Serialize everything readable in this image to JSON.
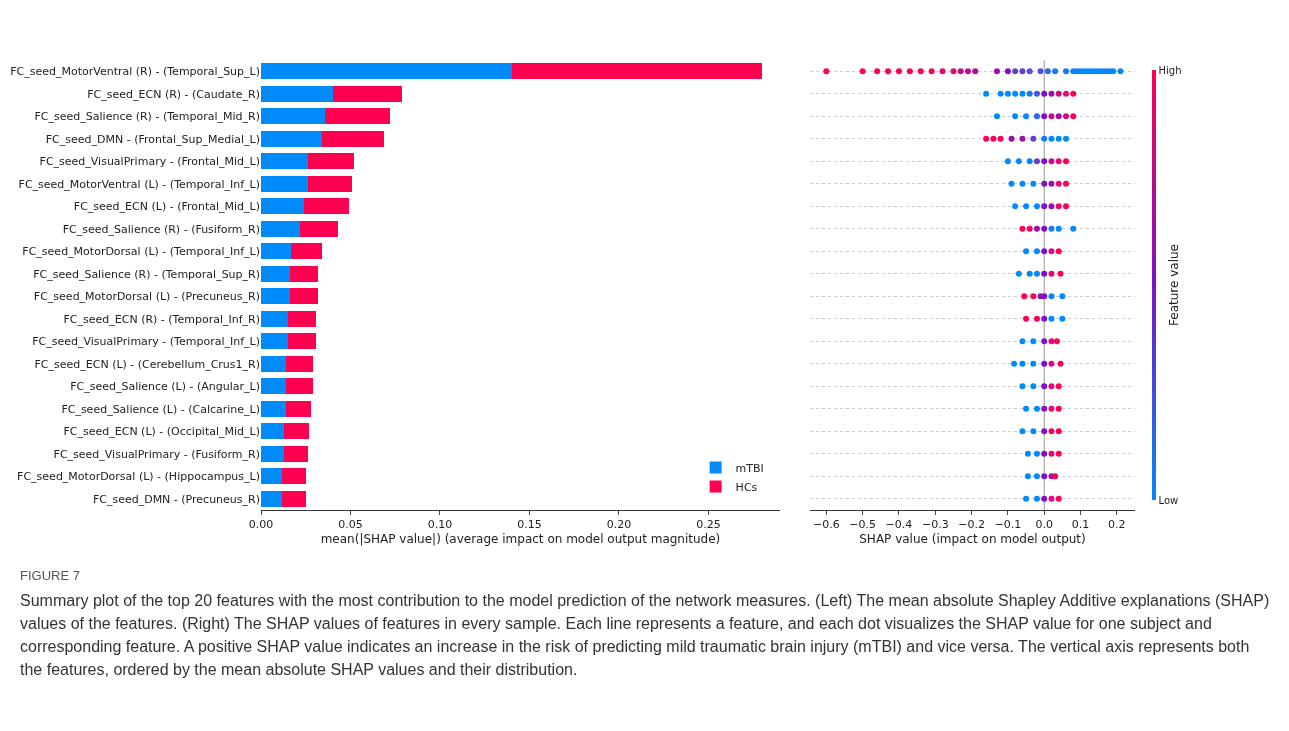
{
  "chart_data": [
    {
      "type": "bar",
      "orientation": "horizontal",
      "stacked": true,
      "legend": "bottom right",
      "xlabel": "mean(|SHAP value|) (average impact on model output magnitude)",
      "categories": [
        "FC_seed_MotorVentral (R) - (Temporal_Sup_L)",
        "FC_seed_ECN (R) - (Caudate_R)",
        "FC_seed_Salience (R) - (Temporal_Mid_R)",
        "FC_seed_DMN - (Frontal_Sup_Medial_L)",
        "FC_seed_VisualPrimary - (Frontal_Mid_L)",
        "FC_seed_MotorVentral (L) - (Temporal_Inf_L)",
        "FC_seed_ECN (L) - (Frontal_Mid_L)",
        "FC_seed_Salience (R) - (Fusiform_R)",
        "FC_seed_MotorDorsal (L) - (Temporal_Inf_L)",
        "FC_seed_Salience (R) - (Temporal_Sup_R)",
        "FC_seed_MotorDorsal (L) - (Precuneus_R)",
        "FC_seed_ECN (R) - (Temporal_Inf_R)",
        "FC_seed_VisualPrimary - (Temporal_Inf_L)",
        "FC_seed_ECN (L) - (Cerebellum_Crus1_R)",
        "FC_seed_Salience (L) - (Angular_L)",
        "FC_seed_Salience (L) - (Calcarine_L)",
        "FC_seed_ECN (L) - (Occipital_Mid_L)",
        "FC_seed_VisualPrimary - (Fusiform_R)",
        "FC_seed_MotorDorsal (L) - (Hippocampus_L)",
        "FC_seed_DMN - (Precuneus_R)"
      ],
      "series": [
        {
          "name": "mTBI",
          "color": "#008bfb",
          "values": [
            0.14,
            0.04,
            0.036,
            0.034,
            0.026,
            0.026,
            0.024,
            0.022,
            0.017,
            0.016,
            0.016,
            0.015,
            0.015,
            0.014,
            0.014,
            0.014,
            0.013,
            0.013,
            0.012,
            0.012
          ]
        },
        {
          "name": "HCs",
          "color": "#ff0051",
          "values": [
            0.14,
            0.039,
            0.036,
            0.035,
            0.026,
            0.025,
            0.025,
            0.021,
            0.017,
            0.016,
            0.016,
            0.016,
            0.016,
            0.015,
            0.015,
            0.014,
            0.014,
            0.013,
            0.013,
            0.013
          ]
        }
      ],
      "xlim": [
        0,
        0.29
      ],
      "xticks": [
        {
          "value": 0,
          "label": "0.00"
        },
        {
          "value": 0.05,
          "label": "0.05"
        },
        {
          "value": 0.1,
          "label": "0.10"
        },
        {
          "value": 0.15,
          "label": "0.15"
        },
        {
          "value": 0.2,
          "label": "0.20"
        },
        {
          "value": 0.25,
          "label": "0.25"
        }
      ],
      "annotations": [
        "FIGURE 7",
        "Summary plot of the top 20 features with the most contribution to the model prediction of the network measures. (Left) The mean absolute Shapley Additive explanations (SHAP) values of the features. (Right) The SHAP values of features in every sample. Each line represents a feature, and each dot visualizes the SHAP value for one subject and corresponding feature. A positive SHAP value indicates an increase in the risk of predicting mild traumatic brain injury (mTBI) and vice versa. The vertical axis represents both the features, ordered by the mean absolute SHAP values and their distribution."
      ]
    },
    {
      "type": "scatter",
      "orientation": "horizontal",
      "marker": "circle",
      "grid": "y",
      "tick_labels": "x",
      "xlabel": "SHAP value (impact on model output)",
      "clabel": "Feature value",
      "categories": [
        "FC_seed_MotorVentral (R) - (Temporal_Sup_L)",
        "FC_seed_ECN (R) - (Caudate_R)",
        "FC_seed_Salience (R) - (Temporal_Mid_R)",
        "FC_seed_DMN - (Frontal_Sup_Medial_L)",
        "FC_seed_VisualPrimary - (Frontal_Mid_L)",
        "FC_seed_MotorVentral (L) - (Temporal_Inf_L)",
        "FC_seed_ECN (L) - (Frontal_Mid_L)",
        "FC_seed_Salience (R) - (Fusiform_R)",
        "FC_seed_MotorDorsal (L) - (Temporal_Inf_L)",
        "FC_seed_Salience (R) - (Temporal_Sup_R)",
        "FC_seed_MotorDorsal (L) - (Precuneus_R)",
        "FC_seed_ECN (R) - (Temporal_Inf_R)",
        "FC_seed_VisualPrimary - (Temporal_Inf_L)",
        "FC_seed_ECN (L) - (Cerebellum_Crus1_R)",
        "FC_seed_Salience (L) - (Angular_L)",
        "FC_seed_Salience (L) - (Calcarine_L)",
        "FC_seed_ECN (L) - (Occipital_Mid_L)",
        "FC_seed_VisualPrimary - (Fusiform_R)",
        "FC_seed_MotorDorsal (L) - (Hippocampus_L)",
        "FC_seed_DMN - (Precuneus_R)"
      ],
      "series": [
        {
          "x": [
            "FC_seed_MotorVentral (R) - (Temporal_Sup_L)",
            "FC_seed_MotorVentral (R) - (Temporal_Sup_L)",
            "FC_seed_MotorVentral (R) - (Temporal_Sup_L)",
            "FC_seed_MotorVentral (R) - (Temporal_Sup_L)",
            "FC_seed_MotorVentral (R) - (Temporal_Sup_L)",
            "FC_seed_MotorVentral (R) - (Temporal_Sup_L)",
            "FC_seed_MotorVentral (R) - (Temporal_Sup_L)",
            "FC_seed_MotorVentral (R) - (Temporal_Sup_L)",
            "FC_seed_MotorVentral (R) - (Temporal_Sup_L)",
            "FC_seed_MotorVentral (R) - (Temporal_Sup_L)",
            "FC_seed_MotorVentral (R) - (Temporal_Sup_L)",
            "FC_seed_MotorVentral (R) - (Temporal_Sup_L)",
            "FC_seed_MotorVentral (R) - (Temporal_Sup_L)",
            "FC_seed_MotorVentral (R) - (Temporal_Sup_L)",
            "FC_seed_MotorVentral (R) - (Temporal_Sup_L)",
            "FC_seed_MotorVentral (R) - (Temporal_Sup_L)",
            "FC_seed_MotorVentral (R) - (Temporal_Sup_L)",
            "FC_seed_MotorVentral (R) - (Temporal_Sup_L)",
            "FC_seed_MotorVentral (R) - (Temporal_Sup_L)",
            "FC_seed_MotorVentral (R) - (Temporal_Sup_L)",
            "FC_seed_MotorVentral (R) - (Temporal_Sup_L)",
            "FC_seed_MotorVentral (R) - (Temporal_Sup_L)",
            "FC_seed_MotorVentral (R) - (Temporal_Sup_L)",
            "FC_seed_MotorVentral (R) - (Temporal_Sup_L)",
            "FC_seed_MotorVentral (R) - (Temporal_Sup_L)",
            "FC_seed_MotorVentral (R) - (Temporal_Sup_L)",
            "FC_seed_MotorVentral (R) - (Temporal_Sup_L)",
            "FC_seed_MotorVentral (R) - (Temporal_Sup_L)",
            "FC_seed_MotorVentral (R) - (Temporal_Sup_L)",
            "FC_seed_MotorVentral (R) - (Temporal_Sup_L)",
            "FC_seed_MotorVentral (R) - (Temporal_Sup_L)",
            "FC_seed_MotorVentral (R) - (Temporal_Sup_L)",
            "FC_seed_MotorVentral (R) - (Temporal_Sup_L)",
            "FC_seed_MotorVentral (R) - (Temporal_Sup_L)",
            "FC_seed_MotorVentral (R) - (Temporal_Sup_L)"
          ],
          "values": [
            -0.6,
            -0.5,
            -0.46,
            -0.43,
            -0.4,
            -0.37,
            -0.34,
            -0.31,
            -0.28,
            -0.25,
            -0.23,
            -0.21,
            -0.19,
            -0.13,
            -0.1,
            -0.08,
            -0.06,
            -0.04,
            -0.01,
            0.01,
            0.03,
            0.06,
            0.08,
            0.09,
            0.1,
            0.11,
            0.12,
            0.13,
            0.14,
            0.15,
            0.16,
            0.17,
            0.18,
            0.19,
            0.21
          ],
          "colors": [
            "#ff0052",
            "#ff0052",
            "#ff0052",
            "#ff0052",
            "#ff0052",
            "#ff0052",
            "#ff0052",
            "#ff0052",
            "#e60873",
            "#e60873",
            "#cc0b84",
            "#cc0b84",
            "#b30e95",
            "#9911a6",
            "#7c13c8",
            "#6640cc",
            "#6640cc",
            "#4d53d8",
            "#4d53d8",
            "#3366e4",
            "#1a78f0",
            "#1a78f0",
            "#008afb",
            "#1a78f0",
            "#008afb",
            "#008afb",
            "#008afb",
            "#008afb",
            "#008afb",
            "#008afb",
            "#008afb",
            "#1a78f0",
            "#008afb",
            "#008afb",
            "#008afb"
          ]
        },
        {
          "x": [
            "FC_seed_ECN (R) - (Caudate_R)",
            "FC_seed_ECN (R) - (Caudate_R)",
            "FC_seed_ECN (R) - (Caudate_R)",
            "FC_seed_ECN (R) - (Caudate_R)",
            "FC_seed_ECN (R) - (Caudate_R)",
            "FC_seed_ECN (R) - (Caudate_R)",
            "FC_seed_ECN (R) - (Caudate_R)",
            "FC_seed_ECN (R) - (Caudate_R)",
            "FC_seed_ECN (R) - (Caudate_R)",
            "FC_seed_ECN (R) - (Caudate_R)",
            "FC_seed_ECN (R) - (Caudate_R)",
            "FC_seed_ECN (R) - (Caudate_R)"
          ],
          "values": [
            -0.16,
            -0.12,
            -0.1,
            -0.08,
            -0.06,
            -0.04,
            -0.02,
            0,
            0.02,
            0.04,
            0.06,
            0.08
          ],
          "colors": [
            "#008afb",
            "#008afb",
            "#008afb",
            "#008afb",
            "#008afb",
            "#1a78f0",
            "#4d53d8",
            "#7c13c8",
            "#9911a6",
            "#cc0b84",
            "#e60873",
            "#ff0052"
          ]
        },
        {
          "x": [
            "FC_seed_Salience (R) - (Temporal_Mid_R)",
            "FC_seed_Salience (R) - (Temporal_Mid_R)",
            "FC_seed_Salience (R) - (Temporal_Mid_R)",
            "FC_seed_Salience (R) - (Temporal_Mid_R)",
            "FC_seed_Salience (R) - (Temporal_Mid_R)",
            "FC_seed_Salience (R) - (Temporal_Mid_R)",
            "FC_seed_Salience (R) - (Temporal_Mid_R)",
            "FC_seed_Salience (R) - (Temporal_Mid_R)",
            "FC_seed_Salience (R) - (Temporal_Mid_R)"
          ],
          "values": [
            -0.13,
            -0.08,
            -0.05,
            -0.02,
            0,
            0.02,
            0.04,
            0.06,
            0.08
          ],
          "colors": [
            "#008afb",
            "#008afb",
            "#008afb",
            "#3366e4",
            "#7c13c8",
            "#cc0b84",
            "#9911a6",
            "#cc0b84",
            "#ff0052"
          ]
        },
        {
          "x": [
            "FC_seed_DMN - (Frontal_Sup_Medial_L)",
            "FC_seed_DMN - (Frontal_Sup_Medial_L)",
            "FC_seed_DMN - (Frontal_Sup_Medial_L)",
            "FC_seed_DMN - (Frontal_Sup_Medial_L)",
            "FC_seed_DMN - (Frontal_Sup_Medial_L)",
            "FC_seed_DMN - (Frontal_Sup_Medial_L)",
            "FC_seed_DMN - (Frontal_Sup_Medial_L)",
            "FC_seed_DMN - (Frontal_Sup_Medial_L)",
            "FC_seed_DMN - (Frontal_Sup_Medial_L)",
            "FC_seed_DMN - (Frontal_Sup_Medial_L)"
          ],
          "values": [
            -0.16,
            -0.14,
            -0.12,
            -0.09,
            -0.06,
            -0.03,
            0,
            0.02,
            0.04,
            0.06
          ],
          "colors": [
            "#ff0052",
            "#ff0052",
            "#ff0052",
            "#9911a6",
            "#9911a6",
            "#6640cc",
            "#1a78f0",
            "#008afb",
            "#008afb",
            "#008afb"
          ]
        },
        {
          "x": [
            "FC_seed_VisualPrimary - (Frontal_Mid_L)",
            "FC_seed_VisualPrimary - (Frontal_Mid_L)",
            "FC_seed_VisualPrimary - (Frontal_Mid_L)",
            "FC_seed_VisualPrimary - (Frontal_Mid_L)",
            "FC_seed_VisualPrimary - (Frontal_Mid_L)",
            "FC_seed_VisualPrimary - (Frontal_Mid_L)",
            "FC_seed_VisualPrimary - (Frontal_Mid_L)",
            "FC_seed_VisualPrimary - (Frontal_Mid_L)"
          ],
          "values": [
            -0.1,
            -0.07,
            -0.04,
            -0.02,
            0,
            0.02,
            0.04,
            0.06
          ],
          "colors": [
            "#008afb",
            "#008afb",
            "#008afb",
            "#6640cc",
            "#7c13c8",
            "#cc0b84",
            "#e60873",
            "#ff0052"
          ]
        },
        {
          "x": [
            "FC_seed_MotorVentral (L) - (Temporal_Inf_L)",
            "FC_seed_MotorVentral (L) - (Temporal_Inf_L)",
            "FC_seed_MotorVentral (L) - (Temporal_Inf_L)",
            "FC_seed_MotorVentral (L) - (Temporal_Inf_L)",
            "FC_seed_MotorVentral (L) - (Temporal_Inf_L)",
            "FC_seed_MotorVentral (L) - (Temporal_Inf_L)",
            "FC_seed_MotorVentral (L) - (Temporal_Inf_L)"
          ],
          "values": [
            -0.09,
            -0.06,
            -0.03,
            0,
            0.02,
            0.04,
            0.06
          ],
          "colors": [
            "#008afb",
            "#008afb",
            "#008afb",
            "#7c13c8",
            "#9911a6",
            "#e60873",
            "#ff0052"
          ]
        },
        {
          "x": [
            "FC_seed_ECN (L) - (Frontal_Mid_L)",
            "FC_seed_ECN (L) - (Frontal_Mid_L)",
            "FC_seed_ECN (L) - (Frontal_Mid_L)",
            "FC_seed_ECN (L) - (Frontal_Mid_L)",
            "FC_seed_ECN (L) - (Frontal_Mid_L)",
            "FC_seed_ECN (L) - (Frontal_Mid_L)",
            "FC_seed_ECN (L) - (Frontal_Mid_L)"
          ],
          "values": [
            -0.08,
            -0.05,
            -0.02,
            0,
            0.02,
            0.04,
            0.06
          ],
          "colors": [
            "#008afb",
            "#008afb",
            "#008afb",
            "#7c13c8",
            "#9911a6",
            "#e60873",
            "#ff0052"
          ]
        },
        {
          "x": [
            "FC_seed_Salience (R) - (Fusiform_R)",
            "FC_seed_Salience (R) - (Fusiform_R)",
            "FC_seed_Salience (R) - (Fusiform_R)",
            "FC_seed_Salience (R) - (Fusiform_R)",
            "FC_seed_Salience (R) - (Fusiform_R)",
            "FC_seed_Salience (R) - (Fusiform_R)",
            "FC_seed_Salience (R) - (Fusiform_R)"
          ],
          "values": [
            -0.06,
            -0.04,
            -0.02,
            0,
            0.02,
            0.04,
            0.08
          ],
          "colors": [
            "#ff0052",
            "#ff0052",
            "#9911a6",
            "#7c13c8",
            "#1a78f0",
            "#008afb",
            "#008afb"
          ]
        },
        {
          "x": [
            "FC_seed_MotorDorsal (L) - (Temporal_Inf_L)",
            "FC_seed_MotorDorsal (L) - (Temporal_Inf_L)",
            "FC_seed_MotorDorsal (L) - (Temporal_Inf_L)",
            "FC_seed_MotorDorsal (L) - (Temporal_Inf_L)",
            "FC_seed_MotorDorsal (L) - (Temporal_Inf_L)"
          ],
          "values": [
            -0.05,
            -0.02,
            0,
            0.02,
            0.04
          ],
          "colors": [
            "#008afb",
            "#008afb",
            "#7c13c8",
            "#e60873",
            "#ff0052"
          ]
        },
        {
          "x": [
            "FC_seed_Salience (R) - (Temporal_Sup_R)",
            "FC_seed_Salience (R) - (Temporal_Sup_R)",
            "FC_seed_Salience (R) - (Temporal_Sup_R)",
            "FC_seed_Salience (R) - (Temporal_Sup_R)",
            "FC_seed_Salience (R) - (Temporal_Sup_R)",
            "FC_seed_Salience (R) - (Temporal_Sup_R)"
          ],
          "values": [
            -0.07,
            -0.04,
            -0.02,
            0,
            0.02,
            0.045
          ],
          "colors": [
            "#008afb",
            "#008afb",
            "#008afb",
            "#7c13c8",
            "#e60873",
            "#ff0052"
          ]
        },
        {
          "x": [
            "FC_seed_MotorDorsal (L) - (Precuneus_R)",
            "FC_seed_MotorDorsal (L) - (Precuneus_R)",
            "FC_seed_MotorDorsal (L) - (Precuneus_R)",
            "FC_seed_MotorDorsal (L) - (Precuneus_R)",
            "FC_seed_MotorDorsal (L) - (Precuneus_R)",
            "FC_seed_MotorDorsal (L) - (Precuneus_R)"
          ],
          "values": [
            -0.055,
            -0.03,
            -0.01,
            0,
            0.02,
            0.05
          ],
          "colors": [
            "#ff0052",
            "#ff0052",
            "#9911a6",
            "#7c13c8",
            "#008afb",
            "#008afb"
          ]
        },
        {
          "x": [
            "FC_seed_ECN (R) - (Temporal_Inf_R)",
            "FC_seed_ECN (R) - (Temporal_Inf_R)",
            "FC_seed_ECN (R) - (Temporal_Inf_R)",
            "FC_seed_ECN (R) - (Temporal_Inf_R)",
            "FC_seed_ECN (R) - (Temporal_Inf_R)"
          ],
          "values": [
            -0.05,
            -0.02,
            0,
            0.02,
            0.05
          ],
          "colors": [
            "#ff0052",
            "#ff0052",
            "#7c13c8",
            "#008afb",
            "#008afb"
          ]
        },
        {
          "x": [
            "FC_seed_VisualPrimary - (Temporal_Inf_L)",
            "FC_seed_VisualPrimary - (Temporal_Inf_L)",
            "FC_seed_VisualPrimary - (Temporal_Inf_L)",
            "FC_seed_VisualPrimary - (Temporal_Inf_L)",
            "FC_seed_VisualPrimary - (Temporal_Inf_L)"
          ],
          "values": [
            -0.06,
            -0.03,
            0,
            0.02,
            0.035
          ],
          "colors": [
            "#008afb",
            "#008afb",
            "#7c13c8",
            "#e60873",
            "#ff0052"
          ]
        },
        {
          "x": [
            "FC_seed_ECN (L) - (Cerebellum_Crus1_R)",
            "FC_seed_ECN (L) - (Cerebellum_Crus1_R)",
            "FC_seed_ECN (L) - (Cerebellum_Crus1_R)",
            "FC_seed_ECN (L) - (Cerebellum_Crus1_R)",
            "FC_seed_ECN (L) - (Cerebellum_Crus1_R)",
            "FC_seed_ECN (L) - (Cerebellum_Crus1_R)"
          ],
          "values": [
            -0.083,
            -0.06,
            -0.03,
            0,
            0.02,
            0.045
          ],
          "colors": [
            "#008afb",
            "#008afb",
            "#008afb",
            "#7c13c8",
            "#e60873",
            "#ff0052"
          ]
        },
        {
          "x": [
            "FC_seed_Salience (L) - (Angular_L)",
            "FC_seed_Salience (L) - (Angular_L)",
            "FC_seed_Salience (L) - (Angular_L)",
            "FC_seed_Salience (L) - (Angular_L)",
            "FC_seed_Salience (L) - (Angular_L)"
          ],
          "values": [
            -0.06,
            -0.03,
            0,
            0.02,
            0.04
          ],
          "colors": [
            "#008afb",
            "#008afb",
            "#7c13c8",
            "#e60873",
            "#ff0052"
          ]
        },
        {
          "x": [
            "FC_seed_Salience (L) - (Calcarine_L)",
            "FC_seed_Salience (L) - (Calcarine_L)",
            "FC_seed_Salience (L) - (Calcarine_L)",
            "FC_seed_Salience (L) - (Calcarine_L)",
            "FC_seed_Salience (L) - (Calcarine_L)"
          ],
          "values": [
            -0.05,
            -0.02,
            0,
            0.02,
            0.04
          ],
          "colors": [
            "#008afb",
            "#008afb",
            "#7c13c8",
            "#e60873",
            "#ff0052"
          ]
        },
        {
          "x": [
            "FC_seed_ECN (L) - (Occipital_Mid_L)",
            "FC_seed_ECN (L) - (Occipital_Mid_L)",
            "FC_seed_ECN (L) - (Occipital_Mid_L)",
            "FC_seed_ECN (L) - (Occipital_Mid_L)",
            "FC_seed_ECN (L) - (Occipital_Mid_L)"
          ],
          "values": [
            -0.06,
            -0.03,
            0,
            0.02,
            0.04
          ],
          "colors": [
            "#008afb",
            "#008afb",
            "#7c13c8",
            "#e60873",
            "#ff0052"
          ]
        },
        {
          "x": [
            "FC_seed_VisualPrimary - (Fusiform_R)",
            "FC_seed_VisualPrimary - (Fusiform_R)",
            "FC_seed_VisualPrimary - (Fusiform_R)",
            "FC_seed_VisualPrimary - (Fusiform_R)",
            "FC_seed_VisualPrimary - (Fusiform_R)"
          ],
          "values": [
            -0.045,
            -0.02,
            0,
            0.02,
            0.04
          ],
          "colors": [
            "#008afb",
            "#008afb",
            "#7c13c8",
            "#e60873",
            "#ff0052"
          ]
        },
        {
          "x": [
            "FC_seed_MotorDorsal (L) - (Hippocampus_L)",
            "FC_seed_MotorDorsal (L) - (Hippocampus_L)",
            "FC_seed_MotorDorsal (L) - (Hippocampus_L)",
            "FC_seed_MotorDorsal (L) - (Hippocampus_L)",
            "FC_seed_MotorDorsal (L) - (Hippocampus_L)"
          ],
          "values": [
            -0.045,
            -0.02,
            0,
            0.02,
            0.03
          ],
          "colors": [
            "#008afb",
            "#008afb",
            "#7c13c8",
            "#9911a6",
            "#ff0052"
          ]
        },
        {
          "x": [
            "FC_seed_DMN - (Precuneus_R)",
            "FC_seed_DMN - (Precuneus_R)",
            "FC_seed_DMN - (Precuneus_R)",
            "FC_seed_DMN - (Precuneus_R)",
            "FC_seed_DMN - (Precuneus_R)"
          ],
          "values": [
            -0.05,
            -0.02,
            0,
            0.02,
            0.04
          ],
          "colors": [
            "#008afb",
            "#008afb",
            "#7c13c8",
            "#e60873",
            "#ff0052"
          ]
        }
      ],
      "xlim": [
        -0.645,
        0.25
      ],
      "xticks": [
        {
          "value": -0.6,
          "label": "−0.6"
        },
        {
          "value": -0.5,
          "label": "−0.5"
        },
        {
          "value": -0.4,
          "label": "−0.4"
        },
        {
          "value": -0.3,
          "label": "−0.3"
        },
        {
          "value": -0.2,
          "label": "−0.2"
        },
        {
          "value": -0.1,
          "label": "−0.1"
        },
        {
          "value": 0,
          "label": "0.0"
        },
        {
          "value": 0.1,
          "label": "0.1"
        },
        {
          "value": 0.2,
          "label": "0.2"
        }
      ],
      "ref_lines": [
        {
          "axis": "x",
          "value": 0,
          "color": "#999999"
        }
      ],
      "clim": [
        0,
        1
      ],
      "cticks": [
        {
          "value": 0,
          "label": "Low"
        },
        {
          "value": 1,
          "label": "High"
        }
      ]
    }
  ]
}
